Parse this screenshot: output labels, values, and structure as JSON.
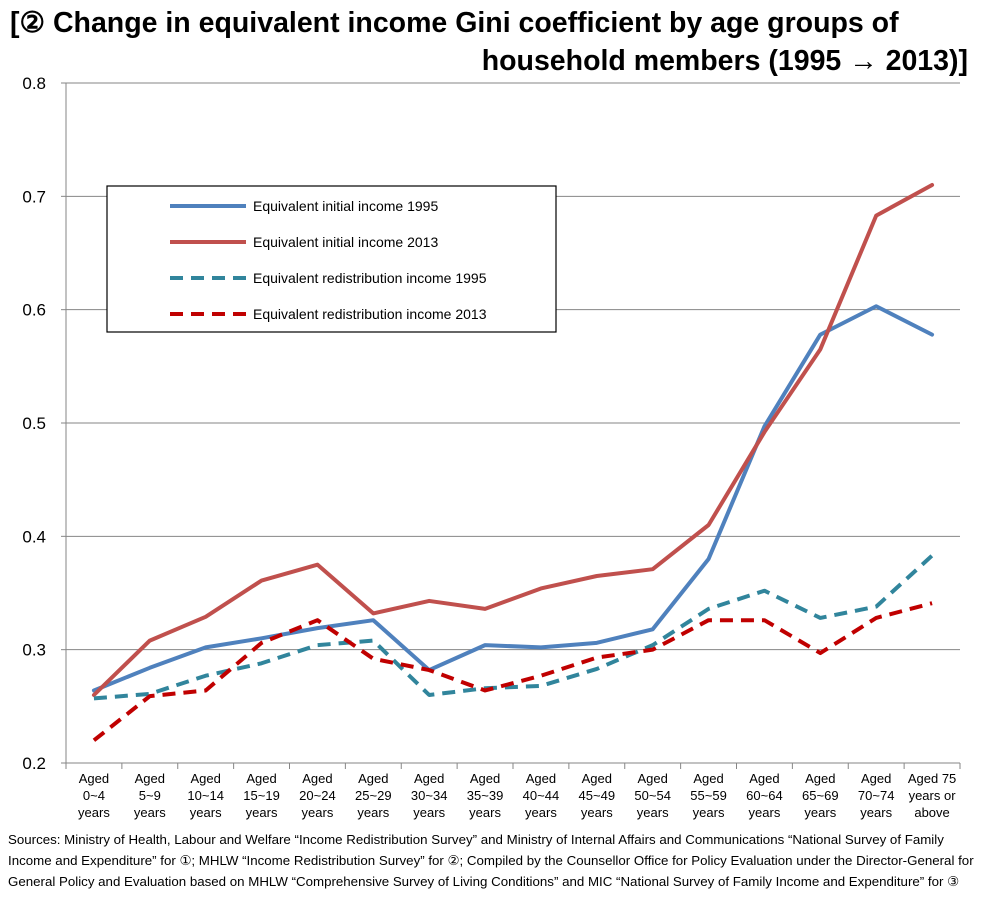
{
  "title": {
    "line1": "[② Change in equivalent income Gini coefficient by age groups of",
    "line2": "household members (1995 → 2013)]"
  },
  "sources": "Sources: Ministry of Health, Labour and Welfare “Income Redistribution Survey” and Ministry of Internal Affairs and Communications “National Survey of Family Income and Expenditure” for ①; MHLW “Income Redistribution Survey” for ②; Compiled by the Counsellor Office for Policy Evaluation under the Director-General for General Policy and Evaluation based on MHLW “Comprehensive Survey of Living Conditions” and MIC “National Survey of Family Income and Expenditure” for ③",
  "chart_data": {
    "type": "line",
    "title": "[② Change in equivalent income Gini coefficient by age groups of household members (1995 → 2013)]",
    "xlabel": "",
    "ylabel": "",
    "ylim": [
      0.2,
      0.8
    ],
    "yticks": [
      "0.2",
      "0.3",
      "0.4",
      "0.5",
      "0.6",
      "0.7",
      "0.8"
    ],
    "grid": "horizontal",
    "legend_position": "upper-left",
    "categories": [
      [
        "Aged",
        "0~4",
        "years"
      ],
      [
        "Aged",
        "5~9",
        "years"
      ],
      [
        "Aged",
        "10~14",
        "years"
      ],
      [
        "Aged",
        "15~19",
        "years"
      ],
      [
        "Aged",
        "20~24",
        "years"
      ],
      [
        "Aged",
        "25~29",
        "years"
      ],
      [
        "Aged",
        "30~34",
        "years"
      ],
      [
        "Aged",
        "35~39",
        "years"
      ],
      [
        "Aged",
        "40~44",
        "years"
      ],
      [
        "Aged",
        "45~49",
        "years"
      ],
      [
        "Aged",
        "50~54",
        "years"
      ],
      [
        "Aged",
        "55~59",
        "years"
      ],
      [
        "Aged",
        "60~64",
        "years"
      ],
      [
        "Aged",
        "65~69",
        "years"
      ],
      [
        "Aged",
        "70~74",
        "years"
      ],
      [
        "Aged 75",
        "years or",
        "above"
      ]
    ],
    "series": [
      {
        "name": "Equivalent initial income 1995",
        "color": "#4F81BD",
        "dash": "solid",
        "values": [
          0.264,
          0.284,
          0.302,
          0.31,
          0.319,
          0.326,
          0.282,
          0.304,
          0.302,
          0.306,
          0.318,
          0.38,
          0.497,
          0.578,
          0.603,
          0.578
        ]
      },
      {
        "name": "Equivalent initial income 2013",
        "color": "#C0504D",
        "dash": "solid",
        "values": [
          0.26,
          0.308,
          0.329,
          0.361,
          0.375,
          0.332,
          0.343,
          0.336,
          0.354,
          0.365,
          0.371,
          0.41,
          0.492,
          0.565,
          0.683,
          0.71
        ]
      },
      {
        "name": "Equivalent redistribution income 1995",
        "color": "#31859C",
        "dash": "dashed",
        "values": [
          0.257,
          0.261,
          0.277,
          0.288,
          0.304,
          0.308,
          0.26,
          0.266,
          0.268,
          0.283,
          0.304,
          0.336,
          0.352,
          0.328,
          0.338,
          0.383
        ]
      },
      {
        "name": "Equivalent redistribution income 2013",
        "color": "#C00000",
        "dash": "dashed",
        "values": [
          0.22,
          0.259,
          0.264,
          0.306,
          0.326,
          0.292,
          0.282,
          0.264,
          0.277,
          0.293,
          0.3,
          0.326,
          0.326,
          0.297,
          0.328,
          0.341
        ]
      }
    ]
  }
}
